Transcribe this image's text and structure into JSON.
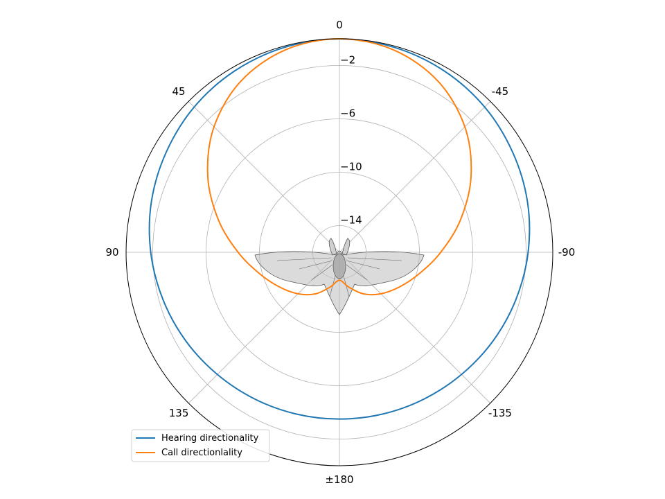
{
  "chart_data": {
    "type": "line",
    "projection": "polar",
    "theta_zero": "top",
    "theta_direction": "counter-clockwise",
    "r_range": [
      -16,
      0
    ],
    "grid": true,
    "legend_placement": "lower-left",
    "angle_ticks": [
      {
        "deg": 0,
        "label": "0"
      },
      {
        "deg": 45,
        "label": "45"
      },
      {
        "deg": 90,
        "label": "90"
      },
      {
        "deg": 135,
        "label": "135"
      },
      {
        "deg": 180,
        "label": "±180"
      },
      {
        "deg": 225,
        "label": "-135"
      },
      {
        "deg": 270,
        "label": "-90"
      },
      {
        "deg": 315,
        "label": "-45"
      }
    ],
    "radial_ticks": [
      {
        "value": -2,
        "label": "−2"
      },
      {
        "value": -6,
        "label": "−6"
      },
      {
        "value": -10,
        "label": "−10"
      },
      {
        "value": -14,
        "label": "−14"
      }
    ],
    "series": [
      {
        "name": "Hearing directionality",
        "color": "#1f77b4",
        "angles_deg": [
          0,
          15,
          30,
          45,
          60,
          75,
          90,
          105,
          120,
          135,
          150,
          165,
          180,
          195,
          210,
          225,
          240,
          255,
          270,
          285,
          300,
          315,
          330,
          345
        ],
        "values_db": [
          0,
          -0.1,
          -0.3,
          -0.6,
          -1.0,
          -1.4,
          -1.85,
          -2.3,
          -2.7,
          -3.05,
          -3.3,
          -3.45,
          -3.5,
          -3.45,
          -3.3,
          -3.05,
          -2.7,
          -2.3,
          -1.85,
          -1.4,
          -1.0,
          -0.6,
          -0.3,
          -0.1
        ]
      },
      {
        "name": "Call directionlality",
        "color": "#ff7f0e",
        "angles_deg": [
          0,
          15,
          30,
          45,
          60,
          75,
          90,
          105,
          120,
          135,
          150,
          165,
          180,
          195,
          210,
          225,
          240,
          255,
          270,
          285,
          300,
          315,
          330,
          345
        ],
        "values_db": [
          0,
          -0.3,
          -1.2,
          -2.7,
          -4.6,
          -6.6,
          -8.4,
          -9.8,
          -10.8,
          -11.6,
          -12.4,
          -13.3,
          -13.9,
          -13.3,
          -12.4,
          -11.6,
          -10.8,
          -9.8,
          -8.4,
          -6.6,
          -4.6,
          -2.7,
          -1.2,
          -0.3
        ]
      }
    ],
    "illustration": "bat-silhouette"
  }
}
